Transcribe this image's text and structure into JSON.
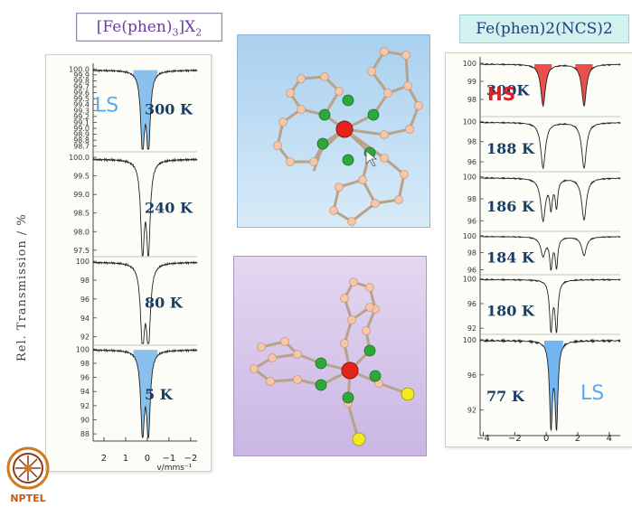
{
  "titles": {
    "left": {
      "main": "[Fe(phen)",
      "sub3": "3",
      "mid": "]X",
      "sub2": "2"
    },
    "right": "Fe(phen)2(NCS)2"
  },
  "logo_text": "NPTEL",
  "chart_data": [
    {
      "type": "line",
      "name": "[Fe(phen)3]X2 Mössbauer spectra",
      "ylabel": "Rel. Transmission / %",
      "xlabel": "v/mms⁻¹",
      "xlim": [
        2.5,
        -2.3
      ],
      "xticks": [
        "2",
        "1",
        "0",
        "−1",
        "−2"
      ],
      "xtick_values": [
        2,
        1,
        0,
        -1,
        -2
      ],
      "panels": [
        {
          "temperature": "300 K",
          "state_label": "LS",
          "yticks": [
            "100.0",
            "99.9",
            "99.8",
            "99.7",
            "99.6",
            "99.5",
            "99.4",
            "99.3",
            "99.2",
            "99.1",
            "99.0",
            "98.9",
            "98.8",
            "98.7"
          ],
          "ylim": [
            98.65,
            100.05
          ],
          "baseline": 99.98,
          "peaks": [
            {
              "center": -0.05,
              "depth": 1.3,
              "width": 0.1
            },
            {
              "center": 0.22,
              "depth": 1.3,
              "width": 0.1
            }
          ],
          "fill": "#74b6ea"
        },
        {
          "temperature": "240 K",
          "yticks": [
            "100.0",
            "99.5",
            "99.0",
            "98.5",
            "98.0",
            "97.5"
          ],
          "ylim": [
            97.35,
            100.1
          ],
          "baseline": 99.95,
          "peaks": [
            {
              "center": -0.05,
              "depth": 2.4,
              "width": 0.1
            },
            {
              "center": 0.22,
              "depth": 2.4,
              "width": 0.1
            }
          ]
        },
        {
          "temperature": "80 K",
          "yticks": [
            "100",
            "98",
            "96",
            "94",
            "92"
          ],
          "ylim": [
            91.3,
            100.3
          ],
          "baseline": 99.9,
          "peaks": [
            {
              "center": -0.05,
              "depth": 8.2,
              "width": 0.11
            },
            {
              "center": 0.22,
              "depth": 8.2,
              "width": 0.11
            }
          ]
        },
        {
          "temperature": "5 K",
          "yticks": [
            "100",
            "98",
            "96",
            "94",
            "92",
            "90",
            "88"
          ],
          "ylim": [
            87.5,
            100.3
          ],
          "baseline": 99.9,
          "peaks": [
            {
              "center": -0.05,
              "depth": 11.5,
              "width": 0.1
            },
            {
              "center": 0.22,
              "depth": 11.5,
              "width": 0.1
            }
          ],
          "fill": "#74b6ea"
        }
      ]
    },
    {
      "type": "line",
      "name": "Fe(phen)2(NCS)2 Mössbauer spectra",
      "xlim": [
        -4.2,
        4.7
      ],
      "xticks": [
        "−4",
        "−2",
        "0",
        "2",
        "4"
      ],
      "xtick_values": [
        -4,
        -2,
        0,
        2,
        4
      ],
      "panels": [
        {
          "temperature": "300K",
          "state_label": "HS",
          "yticks": [
            "100",
            "99",
            "98"
          ],
          "ylim": [
            97.3,
            100.2
          ],
          "baseline": 99.95,
          "peaks": [
            {
              "center": -0.2,
              "depth": 2.3,
              "width": 0.18
            },
            {
              "center": 2.4,
              "depth": 2.3,
              "width": 0.18
            }
          ],
          "fill": "#e8302f"
        },
        {
          "temperature": "188 K",
          "yticks": [
            "100",
            "98",
            "96"
          ],
          "ylim": [
            95.2,
            100.3
          ],
          "baseline": 99.9,
          "peaks": [
            {
              "center": -0.2,
              "depth": 4.5,
              "width": 0.18
            },
            {
              "center": 2.4,
              "depth": 4.5,
              "width": 0.18
            }
          ]
        },
        {
          "temperature": "186 K",
          "yticks": [
            "100",
            "98",
            "96"
          ],
          "ylim": [
            95.2,
            100.3
          ],
          "baseline": 99.9,
          "peaks": [
            {
              "center": -0.2,
              "depth": 3.8,
              "width": 0.18
            },
            {
              "center": 2.4,
              "depth": 3.8,
              "width": 0.18
            },
            {
              "center": 0.3,
              "depth": 2.5,
              "width": 0.1
            },
            {
              "center": 0.65,
              "depth": 2.5,
              "width": 0.1
            }
          ]
        },
        {
          "temperature": "184 K",
          "yticks": [
            "100",
            "98",
            "96"
          ],
          "ylim": [
            95.2,
            100.3
          ],
          "baseline": 99.9,
          "peaks": [
            {
              "center": -0.2,
              "depth": 2.2,
              "width": 0.18
            },
            {
              "center": 2.4,
              "depth": 2.2,
              "width": 0.18
            },
            {
              "center": 0.3,
              "depth": 3.5,
              "width": 0.1
            },
            {
              "center": 0.65,
              "depth": 3.5,
              "width": 0.1
            }
          ]
        },
        {
          "temperature": "180 K",
          "yticks": [
            "100",
            "96",
            "92"
          ],
          "ylim": [
            91,
            100.4
          ],
          "baseline": 99.9,
          "peaks": [
            {
              "center": 0.3,
              "depth": 8,
              "width": 0.11
            },
            {
              "center": 0.65,
              "depth": 8,
              "width": 0.11
            }
          ]
        },
        {
          "temperature": "77 K",
          "state_label": "LS",
          "yticks": [
            "100",
            "96",
            "92"
          ],
          "ylim": [
            89.5,
            100.4
          ],
          "baseline": 99.9,
          "peaks": [
            {
              "center": 0.3,
              "depth": 9.5,
              "width": 0.11
            },
            {
              "center": 0.65,
              "depth": 9.5,
              "width": 0.11
            }
          ],
          "fill": "#5aa8ee"
        }
      ]
    }
  ]
}
